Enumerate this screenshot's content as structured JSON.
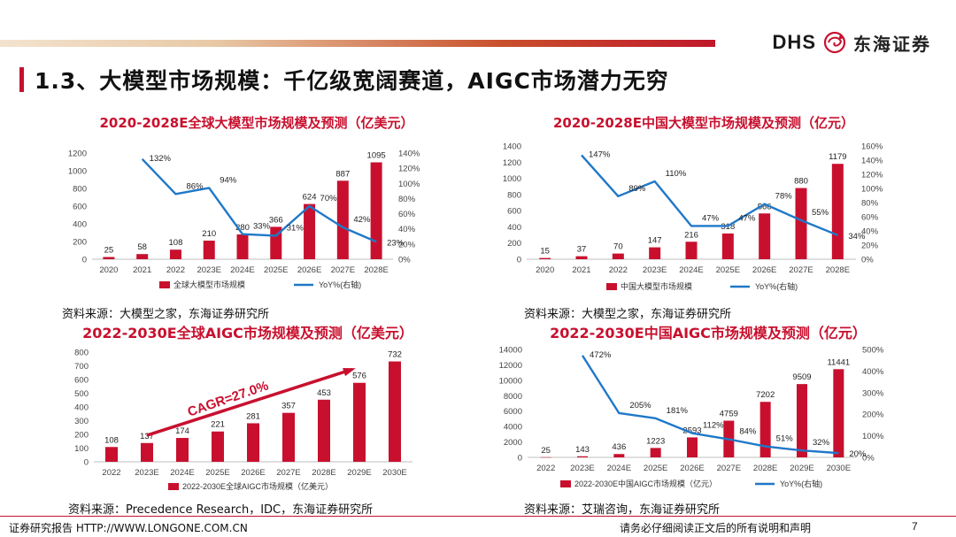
{
  "header": {
    "brand_latin": "DHS",
    "brand_cn": "东海证券",
    "title": "1.3、大模型市场规模：千亿级宽阔赛道，AIGC市场潜力无穷"
  },
  "colors": {
    "bar": "#c8102e",
    "line": "#1f78c8",
    "title_red": "#c8102e"
  },
  "chart_data": [
    {
      "type": "bar",
      "title": "2020-2028E全球大模型市场规模及预测（亿美元）",
      "categories": [
        "2020",
        "2021",
        "2022",
        "2023E",
        "2024E",
        "2025E",
        "2026E",
        "2027E",
        "2028E"
      ],
      "series": [
        {
          "name": "全球大模型市场规模",
          "type": "bar",
          "axis": "left",
          "values": [
            25,
            58,
            108,
            210,
            280,
            366,
            624,
            887,
            1095
          ]
        },
        {
          "name": "YoY%(右轴)",
          "type": "line",
          "axis": "right",
          "values": [
            null,
            132,
            86,
            94,
            33,
            31,
            70,
            42,
            23
          ]
        }
      ],
      "value_labels": [
        "25",
        "58",
        "108",
        "210",
        "280",
        "366",
        "624",
        "887",
        "1095"
      ],
      "yoy_labels": [
        "",
        "132%",
        "86%",
        "94%",
        "33%",
        "31%",
        "70%",
        "42%",
        "23%"
      ],
      "y_left": {
        "min": 0,
        "max": 1200,
        "ticks": [
          "0",
          "200",
          "400",
          "600",
          "800",
          "1000",
          "1200"
        ]
      },
      "y_right": {
        "min": 0,
        "max": 140,
        "ticks": [
          "0%",
          "20%",
          "40%",
          "60%",
          "80%",
          "100%",
          "120%",
          "140%"
        ]
      },
      "source": "资料来源：大模型之家，东海证券研究所"
    },
    {
      "type": "bar",
      "title": "2020-2028E中国大模型市场规模及预测（亿元）",
      "categories": [
        "2020",
        "2021",
        "2022",
        "2023E",
        "2024E",
        "2025E",
        "2026E",
        "2027E",
        "2028E"
      ],
      "series": [
        {
          "name": "中国大模型市场规模",
          "type": "bar",
          "axis": "left",
          "values": [
            15,
            37,
            70,
            147,
            216,
            318,
            566,
            880,
            1179
          ]
        },
        {
          "name": "YoY%(右轴)",
          "type": "line",
          "axis": "right",
          "values": [
            null,
            147,
            89,
            110,
            47,
            47,
            78,
            55,
            34
          ]
        }
      ],
      "value_labels": [
        "15",
        "37",
        "70",
        "147",
        "216",
        "318",
        "566",
        "880",
        "1179"
      ],
      "yoy_labels": [
        "",
        "147%",
        "89%",
        "110%",
        "47%",
        "47%",
        "78%",
        "55%",
        "34%"
      ],
      "y_left": {
        "min": 0,
        "max": 1400,
        "ticks": [
          "0",
          "200",
          "400",
          "600",
          "800",
          "1000",
          "1200",
          "1400"
        ]
      },
      "y_right": {
        "min": 0,
        "max": 160,
        "ticks": [
          "0%",
          "20%",
          "40%",
          "60%",
          "80%",
          "100%",
          "120%",
          "140%",
          "160%"
        ]
      },
      "source": "资料来源：大模型之家，东海证券研究所"
    },
    {
      "type": "bar",
      "title": "2022-2030E全球AIGC市场规模及预测（亿美元）",
      "categories": [
        "2022",
        "2023E",
        "2024E",
        "2025E",
        "2026E",
        "2027E",
        "2028E",
        "2029E",
        "2030E"
      ],
      "series": [
        {
          "name": "2022-2030E全球AIGC市场规模（亿美元）",
          "type": "bar",
          "axis": "left",
          "values": [
            108,
            137,
            174,
            221,
            281,
            357,
            453,
            576,
            732
          ]
        }
      ],
      "value_labels": [
        "108",
        "137",
        "174",
        "221",
        "281",
        "357",
        "453",
        "576",
        "732"
      ],
      "annotation": "CAGR=27.0%",
      "y_left": {
        "min": 0,
        "max": 800,
        "ticks": [
          "0",
          "100",
          "200",
          "300",
          "400",
          "500",
          "600",
          "700",
          "800"
        ]
      },
      "source": "资料来源：Precedence Research，IDC，东海证券研究所"
    },
    {
      "type": "bar",
      "title": "2022-2030E中国AIGC市场规模及预测（亿元）",
      "categories": [
        "2022",
        "2023E",
        "2024E",
        "2025E",
        "2026E",
        "2027E",
        "2028E",
        "2029E",
        "2030E"
      ],
      "series": [
        {
          "name": "2022-2030E中国AIGC市场规模（亿元）",
          "type": "bar",
          "axis": "left",
          "values": [
            25,
            143,
            436,
            1223,
            2593,
            4759,
            7202,
            9509,
            11441
          ]
        },
        {
          "name": "YoY%(右轴)",
          "type": "line",
          "axis": "right",
          "values": [
            null,
            472,
            205,
            181,
            112,
            84,
            51,
            32,
            20
          ]
        }
      ],
      "value_labels": [
        "25",
        "143",
        "436",
        "1223",
        "2593",
        "4759",
        "7202",
        "9509",
        "11441"
      ],
      "yoy_labels": [
        "",
        "472%",
        "205%",
        "181%",
        "112%",
        "84%",
        "51%",
        "32%",
        "20%"
      ],
      "y_left": {
        "min": 0,
        "max": 14000,
        "ticks": [
          "0",
          "2000",
          "4000",
          "6000",
          "8000",
          "10000",
          "12000",
          "14000"
        ]
      },
      "y_right": {
        "min": 0,
        "max": 500,
        "ticks": [
          "0%",
          "100%",
          "200%",
          "300%",
          "400%",
          "500%"
        ]
      },
      "source": "资料来源：艾瑞咨询，东海证券研究所"
    }
  ],
  "footer": {
    "left": "证券研究报告 HTTP://WWW.LONGONE.COM.CN",
    "right": "请务必仔细阅读正文后的所有说明和声明",
    "page": "7"
  }
}
